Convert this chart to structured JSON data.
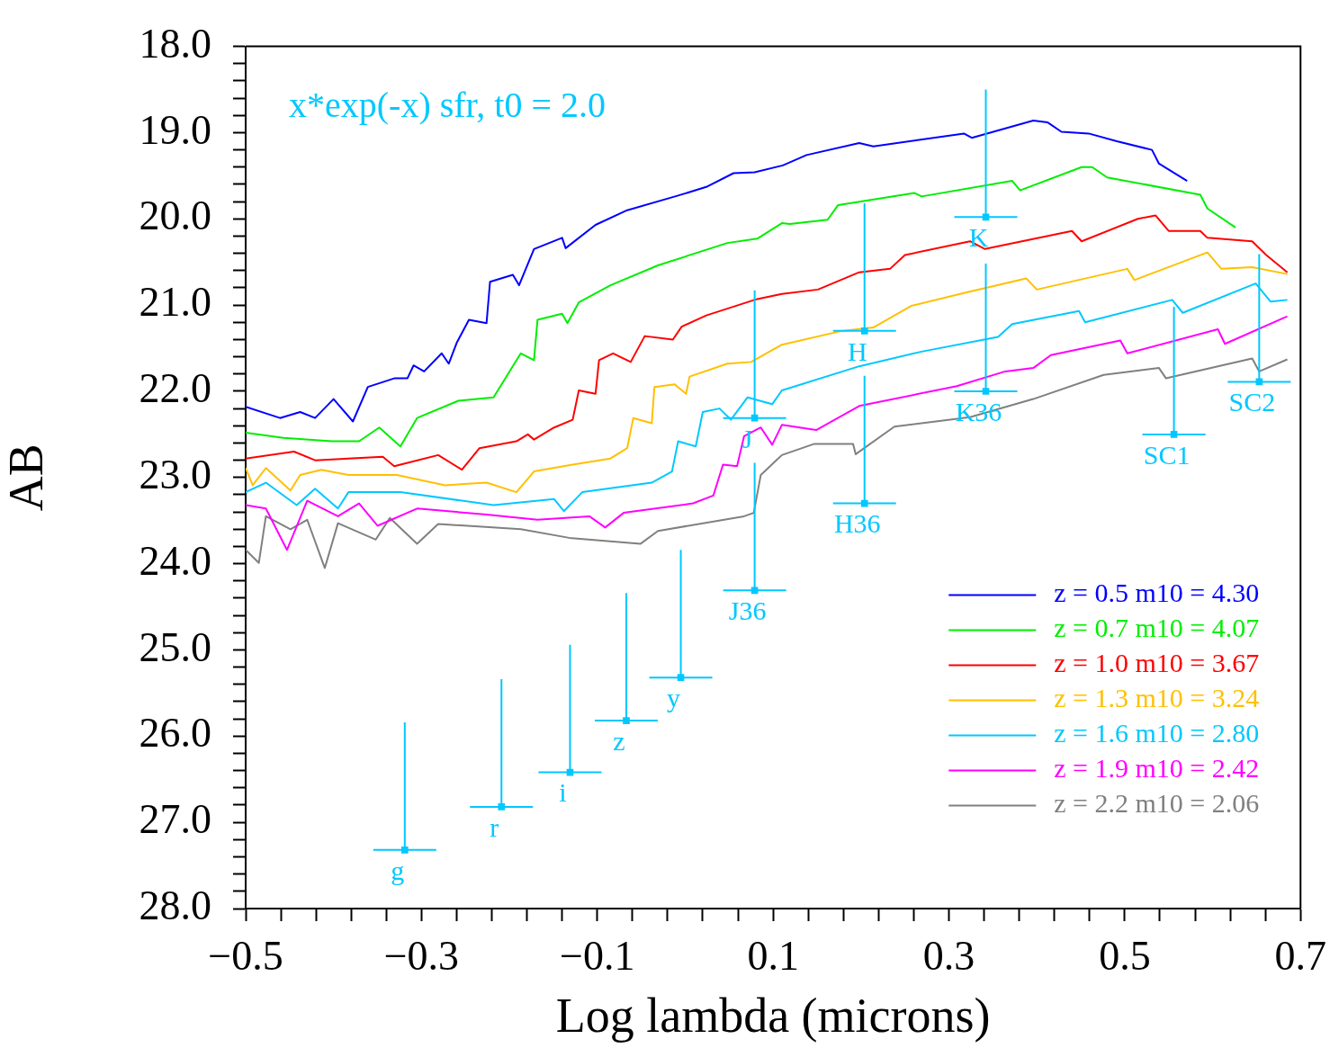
{
  "chart_data": {
    "type": "line",
    "xlabel": "Log lambda (microns)",
    "ylabel": "AB",
    "xlim": [
      -0.5,
      0.7
    ],
    "ylim": [
      28,
      18
    ],
    "xticks": [
      {
        "value": -0.5,
        "label": "−0.5"
      },
      {
        "value": -0.46,
        "label": null
      },
      {
        "value": -0.42,
        "label": null
      },
      {
        "value": -0.38,
        "label": null
      },
      {
        "value": -0.34,
        "label": null
      },
      {
        "value": -0.3,
        "label": "−0.3"
      },
      {
        "value": -0.26,
        "label": null
      },
      {
        "value": -0.22,
        "label": null
      },
      {
        "value": -0.18,
        "label": null
      },
      {
        "value": -0.14,
        "label": null
      },
      {
        "value": -0.1,
        "label": "−0.1"
      },
      {
        "value": -0.06,
        "label": null
      },
      {
        "value": -0.02,
        "label": null
      },
      {
        "value": 0.02,
        "label": null
      },
      {
        "value": 0.06,
        "label": null
      },
      0.1,
      {
        "value": 0.14,
        "label": null
      },
      {
        "value": 0.18,
        "label": null
      },
      {
        "value": 0.22,
        "label": null
      },
      {
        "value": 0.26,
        "label": null
      },
      0.3,
      {
        "value": 0.34,
        "label": null
      },
      {
        "value": 0.38,
        "label": null
      },
      {
        "value": 0.42,
        "label": null
      },
      {
        "value": 0.46,
        "label": null
      },
      0.5,
      {
        "value": 0.54,
        "label": null
      },
      {
        "value": 0.58,
        "label": null
      },
      {
        "value": 0.62,
        "label": null
      },
      {
        "value": 0.66,
        "label": null
      },
      0.7
    ],
    "yticks": [
      {
        "value": 18,
        "label": "18.0"
      },
      {
        "value": 18.2,
        "label": null
      },
      {
        "value": 18.4,
        "label": null
      },
      {
        "value": 18.6,
        "label": null
      },
      {
        "value": 18.8,
        "label": null
      },
      {
        "value": 19,
        "label": "19.0"
      },
      {
        "value": 19.2,
        "label": null
      },
      {
        "value": 19.4,
        "label": null
      },
      {
        "value": 19.6,
        "label": null
      },
      {
        "value": 19.8,
        "label": null
      },
      {
        "value": 20,
        "label": "20.0"
      },
      {
        "value": 20.2,
        "label": null
      },
      {
        "value": 20.4,
        "label": null
      },
      {
        "value": 20.6,
        "label": null
      },
      {
        "value": 20.8,
        "label": null
      },
      {
        "value": 21,
        "label": "21.0"
      },
      {
        "value": 21.2,
        "label": null
      },
      {
        "value": 21.4,
        "label": null
      },
      {
        "value": 21.6,
        "label": null
      },
      {
        "value": 21.8,
        "label": null
      },
      {
        "value": 22,
        "label": "22.0"
      },
      {
        "value": 22.2,
        "label": null
      },
      {
        "value": 22.4,
        "label": null
      },
      {
        "value": 22.6,
        "label": null
      },
      {
        "value": 22.8,
        "label": null
      },
      {
        "value": 23,
        "label": "23.0"
      },
      {
        "value": 23.2,
        "label": null
      },
      {
        "value": 23.4,
        "label": null
      },
      {
        "value": 23.6,
        "label": null
      },
      {
        "value": 23.8,
        "label": null
      },
      {
        "value": 24,
        "label": "24.0"
      },
      {
        "value": 24.2,
        "label": null
      },
      {
        "value": 24.4,
        "label": null
      },
      {
        "value": 24.6,
        "label": null
      },
      {
        "value": 24.8,
        "label": null
      },
      {
        "value": 25,
        "label": "25.0"
      },
      {
        "value": 25.2,
        "label": null
      },
      {
        "value": 25.4,
        "label": null
      },
      {
        "value": 25.6,
        "label": null
      },
      {
        "value": 25.8,
        "label": null
      },
      {
        "value": 26,
        "label": "26.0"
      },
      {
        "value": 26.2,
        "label": null
      },
      {
        "value": 26.4,
        "label": null
      },
      {
        "value": 26.6,
        "label": null
      },
      {
        "value": 26.8,
        "label": null
      },
      {
        "value": 27,
        "label": "27.0"
      },
      {
        "value": 27.2,
        "label": null
      },
      {
        "value": 27.4,
        "label": null
      },
      {
        "value": 27.6,
        "label": null
      },
      {
        "value": 27.8,
        "label": null
      },
      {
        "value": 28,
        "label": "28.0"
      }
    ],
    "legend": "bottom right",
    "line_style": "solid",
    "marker": "none",
    "series": [
      {
        "name": "z = 0.5 m10 = 4.30",
        "color": "#0000ff",
        "x": [
          -0.5,
          -0.461,
          -0.438,
          -0.421,
          -0.4,
          -0.378,
          -0.361,
          -0.331,
          -0.316,
          -0.309,
          -0.297,
          -0.277,
          -0.269,
          -0.26,
          -0.246,
          -0.226,
          -0.222,
          -0.196,
          -0.189,
          -0.172,
          -0.14,
          -0.136,
          -0.102,
          -0.066,
          -0.008,
          0.024,
          0.055,
          0.079,
          0.111,
          0.138,
          0.198,
          0.214,
          0.317,
          0.326,
          0.396,
          0.412,
          0.428,
          0.459,
          0.491,
          0.531,
          0.539,
          0.571
        ],
        "values": [
          22.18,
          22.31,
          22.24,
          22.31,
          22.09,
          22.35,
          21.95,
          21.85,
          21.85,
          21.7,
          21.77,
          21.56,
          21.68,
          21.44,
          21.17,
          21.21,
          20.73,
          20.65,
          20.77,
          20.35,
          20.22,
          20.34,
          20.07,
          19.9,
          19.73,
          19.63,
          19.47,
          19.46,
          19.38,
          19.26,
          19.12,
          19.16,
          19.01,
          19.06,
          18.86,
          18.88,
          18.99,
          19.01,
          19.1,
          19.2,
          19.36,
          19.56
        ]
      },
      {
        "name": "z = 0.7 m10 = 4.07",
        "color": "#00ee00",
        "x": [
          -0.5,
          -0.457,
          -0.402,
          -0.371,
          -0.348,
          -0.324,
          -0.305,
          -0.258,
          -0.218,
          -0.187,
          -0.172,
          -0.168,
          -0.14,
          -0.134,
          -0.121,
          -0.085,
          -0.031,
          0.048,
          0.082,
          0.11,
          0.119,
          0.162,
          0.174,
          0.261,
          0.269,
          0.372,
          0.381,
          0.451,
          0.463,
          0.48,
          0.586,
          0.594,
          0.626
        ],
        "values": [
          22.48,
          22.54,
          22.58,
          22.58,
          22.42,
          22.64,
          22.31,
          22.11,
          22.07,
          21.56,
          21.64,
          21.17,
          21.1,
          21.21,
          20.97,
          20.77,
          20.54,
          20.28,
          20.23,
          20.05,
          20.06,
          20.01,
          19.84,
          19.7,
          19.74,
          19.56,
          19.67,
          19.4,
          19.4,
          19.52,
          19.72,
          19.88,
          20.1
        ]
      },
      {
        "name": "z = 1.0 m10 = 3.67",
        "color": "#ff0000",
        "x": [
          -0.5,
          -0.445,
          -0.421,
          -0.344,
          -0.331,
          -0.281,
          -0.254,
          -0.234,
          -0.192,
          -0.179,
          -0.172,
          -0.149,
          -0.128,
          -0.121,
          -0.102,
          -0.098,
          -0.082,
          -0.062,
          -0.046,
          -0.014,
          -0.004,
          0.024,
          0.082,
          0.11,
          0.151,
          0.198,
          0.233,
          0.25,
          0.324,
          0.341,
          0.44,
          0.451,
          0.515,
          0.535,
          0.55,
          0.586,
          0.594,
          0.645,
          0.661,
          0.685
        ],
        "values": [
          22.78,
          22.7,
          22.8,
          22.76,
          22.87,
          22.74,
          22.91,
          22.66,
          22.58,
          22.5,
          22.56,
          22.42,
          22.33,
          21.99,
          22.03,
          21.64,
          21.56,
          21.66,
          21.36,
          21.4,
          21.25,
          21.12,
          20.93,
          20.87,
          20.82,
          20.62,
          20.58,
          20.42,
          20.26,
          20.35,
          20.14,
          20.26,
          20.0,
          19.96,
          20.14,
          20.14,
          20.22,
          20.26,
          20.42,
          20.62
        ]
      },
      {
        "name": "z = 1.3 m10 = 3.24",
        "color": "#ffc000",
        "x": [
          -0.5,
          -0.492,
          -0.477,
          -0.449,
          -0.438,
          -0.414,
          -0.383,
          -0.328,
          -0.273,
          -0.226,
          -0.192,
          -0.172,
          -0.128,
          -0.085,
          -0.066,
          -0.059,
          -0.038,
          -0.035,
          -0.012,
          0.001,
          0.005,
          0.048,
          0.075,
          0.11,
          0.178,
          0.214,
          0.257,
          0.317,
          0.388,
          0.4,
          0.503,
          0.511,
          0.594,
          0.61,
          0.645,
          0.685
        ],
        "values": [
          22.89,
          23.09,
          22.89,
          23.15,
          22.97,
          22.91,
          22.97,
          22.97,
          23.09,
          23.06,
          23.17,
          22.93,
          22.85,
          22.78,
          22.66,
          22.31,
          22.37,
          21.95,
          21.92,
          22.03,
          21.83,
          21.68,
          21.66,
          21.46,
          21.3,
          21.26,
          21.01,
          20.86,
          20.69,
          20.82,
          20.58,
          20.71,
          20.39,
          20.58,
          20.56,
          20.64
        ]
      },
      {
        "name": "z = 1.6 m10 = 2.80",
        "color": "#00c8ff",
        "x": [
          -0.5,
          -0.477,
          -0.442,
          -0.421,
          -0.395,
          -0.383,
          -0.324,
          -0.218,
          -0.149,
          -0.138,
          -0.117,
          -0.038,
          -0.015,
          -0.008,
          0.012,
          0.02,
          0.039,
          0.052,
          0.071,
          0.099,
          0.11,
          0.198,
          0.269,
          0.356,
          0.372,
          0.448,
          0.455,
          0.554,
          0.566,
          0.649,
          0.666,
          0.685
        ],
        "values": [
          23.17,
          23.06,
          23.32,
          23.13,
          23.36,
          23.17,
          23.17,
          23.32,
          23.25,
          23.39,
          23.17,
          23.06,
          22.93,
          22.58,
          22.64,
          22.24,
          22.2,
          22.33,
          22.07,
          22.15,
          21.99,
          21.71,
          21.54,
          21.37,
          21.22,
          21.07,
          21.2,
          20.94,
          21.09,
          20.75,
          20.96,
          20.94
        ]
      },
      {
        "name": "z = 1.9 m10 = 2.42",
        "color": "#ff00ff",
        "x": [
          -0.5,
          -0.477,
          -0.453,
          -0.43,
          -0.395,
          -0.371,
          -0.35,
          -0.305,
          -0.226,
          -0.168,
          -0.109,
          -0.091,
          -0.07,
          0.009,
          0.032,
          0.043,
          0.059,
          0.067,
          0.086,
          0.099,
          0.11,
          0.149,
          0.198,
          0.309,
          0.364,
          0.396,
          0.416,
          0.495,
          0.503,
          0.606,
          0.614,
          0.685
        ],
        "values": [
          23.32,
          23.36,
          23.84,
          23.27,
          23.45,
          23.3,
          23.56,
          23.36,
          23.43,
          23.49,
          23.45,
          23.58,
          23.41,
          23.3,
          23.21,
          22.85,
          22.87,
          22.52,
          22.42,
          22.62,
          22.39,
          22.45,
          22.17,
          21.94,
          21.77,
          21.73,
          21.58,
          21.41,
          21.56,
          21.28,
          21.45,
          21.13
        ]
      },
      {
        "name": "z = 2.2 m10 = 2.06",
        "color": "#808080",
        "x": [
          -0.5,
          -0.485,
          -0.477,
          -0.449,
          -0.43,
          -0.41,
          -0.395,
          -0.352,
          -0.336,
          -0.305,
          -0.281,
          -0.187,
          -0.132,
          -0.051,
          -0.031,
          0.067,
          0.078,
          0.086,
          0.11,
          0.147,
          0.191,
          0.194,
          0.238,
          0.324,
          0.396,
          0.476,
          0.539,
          0.547,
          0.645,
          0.653,
          0.685
        ],
        "values": [
          23.84,
          23.99,
          23.45,
          23.6,
          23.49,
          24.05,
          23.53,
          23.72,
          23.47,
          23.77,
          23.54,
          23.6,
          23.7,
          23.77,
          23.62,
          23.45,
          23.41,
          22.97,
          22.74,
          22.61,
          22.61,
          22.73,
          22.41,
          22.3,
          22.09,
          21.81,
          21.73,
          21.85,
          21.62,
          21.77,
          21.63
        ]
      },
      {
        "type": "scatter",
        "color": "#00c8ff",
        "x": [
          -0.319,
          -0.209,
          -0.131,
          -0.067,
          -0.005,
          0.079,
          0.079,
          0.204,
          0.204,
          0.342,
          0.342,
          0.556,
          0.653
        ],
        "values": [
          27.32,
          26.82,
          26.42,
          25.82,
          25.32,
          24.31,
          22.31,
          21.3,
          23.3,
          19.98,
          22.0,
          22.5,
          21.89
        ],
        "marker": "square",
        "errors": [
          [
            25.84,
            27.32
          ],
          [
            25.34,
            26.82
          ],
          [
            24.94,
            26.42
          ],
          [
            24.34,
            25.82
          ],
          [
            23.84,
            25.32
          ],
          [
            22.83,
            24.31
          ],
          [
            20.83,
            22.31
          ],
          [
            19.82,
            21.3
          ],
          [
            21.82,
            23.3
          ],
          [
            18.5,
            19.98
          ],
          [
            20.52,
            22.0
          ],
          [
            21.02,
            22.5
          ],
          [
            20.41,
            21.89
          ]
        ]
      }
    ],
    "annotations": [
      "x*exp(-x) sfr, t0 = 2.0",
      {
        "text": "g",
        "x": -0.319,
        "y": 27.32
      },
      {
        "text": "r",
        "x": -0.209,
        "y": 26.82
      },
      {
        "text": "i",
        "x": -0.131,
        "y": 26.42
      },
      {
        "text": "z",
        "x": -0.067,
        "y": 25.82
      },
      {
        "text": "y",
        "x": -0.005,
        "y": 25.32
      },
      {
        "text": "J36",
        "x": 0.079,
        "y": 24.31
      },
      {
        "text": "J",
        "x": 0.079,
        "y": 22.31
      },
      {
        "text": "H",
        "x": 0.204,
        "y": 21.3
      },
      {
        "text": "H36",
        "x": 0.204,
        "y": 23.3
      },
      {
        "text": "K",
        "x": 0.342,
        "y": 19.98
      },
      {
        "text": "K36",
        "x": 0.342,
        "y": 22.0
      },
      {
        "text": "SC1",
        "x": 0.556,
        "y": 22.5
      },
      {
        "text": "SC2",
        "x": 0.653,
        "y": 21.89
      }
    ]
  }
}
